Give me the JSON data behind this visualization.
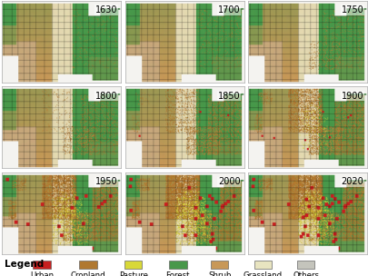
{
  "years": [
    "1630",
    "1700",
    "1750",
    "1800",
    "1850",
    "1900",
    "1950",
    "2000",
    "2020"
  ],
  "legend_items": [
    {
      "label": "Urban",
      "color": "#c82020"
    },
    {
      "label": "Cropland",
      "color": "#b07830"
    },
    {
      "label": "Pasture",
      "color": "#d8d838"
    },
    {
      "label": "Forest",
      "color": "#48984a"
    },
    {
      "label": "Shrub",
      "color": "#c89858"
    },
    {
      "label": "Grassland",
      "color": "#e8e4c0"
    },
    {
      "label": "Others",
      "color": "#c4c4bc"
    }
  ],
  "fig_bg": "#ffffff",
  "panel_border": "#aaaaaa",
  "year_label_fontsize": 7,
  "legend_fontsize": 6.2,
  "legend_title_fontsize": 7.5
}
